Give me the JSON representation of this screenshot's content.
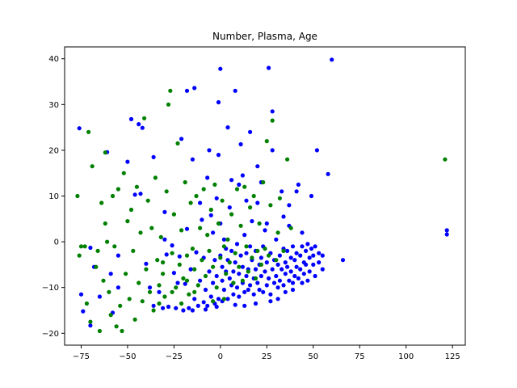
{
  "chart_data": {
    "type": "scatter",
    "title": "Number, Plasma, Age",
    "xlabel": "",
    "ylabel": "",
    "xlim": [
      -83.9,
      131.9
    ],
    "ylim": [
      -22.6,
      42.6
    ],
    "xticks": [
      -75,
      -50,
      -25,
      0,
      25,
      50,
      75,
      100,
      125
    ],
    "yticks": [
      -20,
      -10,
      0,
      10,
      20,
      30,
      40
    ],
    "grid": false,
    "legend": "none",
    "series": [
      {
        "color": "#0000ff",
        "points": [
          [
            -76,
            24.8
          ],
          [
            -75,
            -11.5
          ],
          [
            -74,
            -15.2
          ],
          [
            -70,
            -18.3
          ],
          [
            -70,
            -1.3
          ],
          [
            -68,
            -5.5
          ],
          [
            -65,
            -12.0
          ],
          [
            -61,
            19.6
          ],
          [
            -59,
            -7.0
          ],
          [
            -58,
            -15.5
          ],
          [
            -55,
            -3.0
          ],
          [
            -55,
            -10.0
          ],
          [
            -50,
            17.5
          ],
          [
            -48,
            26.8
          ],
          [
            -46,
            10.3
          ],
          [
            -44,
            25.7
          ],
          [
            -42,
            24.9
          ],
          [
            -40,
            -4.8
          ],
          [
            -38,
            -10.0
          ],
          [
            -36,
            -14.0
          ],
          [
            -33,
            -11.0
          ],
          [
            -31,
            -14.5
          ],
          [
            -30,
            0.5
          ],
          [
            -29,
            -2.8
          ],
          [
            -28,
            -14.2
          ],
          [
            -26,
            -0.8
          ],
          [
            -25,
            -6.8
          ],
          [
            -24,
            -14.5
          ],
          [
            -23,
            -9.0
          ],
          [
            -22,
            -3.2
          ],
          [
            -21,
            22.5
          ],
          [
            -20,
            -15.0
          ],
          [
            -19,
            -9.2
          ],
          [
            -18,
            2.8
          ],
          [
            -18,
            33.0
          ],
          [
            -17,
            -14.5
          ],
          [
            -16,
            -6.0
          ],
          [
            -15,
            18.0
          ],
          [
            -14,
            33.6
          ],
          [
            -14,
            -12.5
          ],
          [
            -13,
            -2.3
          ],
          [
            -12,
            -14.0
          ],
          [
            -11,
            -8.5
          ],
          [
            -10,
            4.8
          ],
          [
            -9,
            -13.2
          ],
          [
            -9,
            -3.5
          ],
          [
            -8,
            -10.5
          ],
          [
            -7,
            -14.0
          ],
          [
            -6,
            20.0
          ],
          [
            -6,
            -6.5
          ],
          [
            -5,
            5.8
          ],
          [
            -5,
            -12.0
          ],
          [
            -4,
            2.0
          ],
          [
            -4,
            -9.0
          ],
          [
            -3,
            -13.5
          ],
          [
            -3,
            -4.0
          ],
          [
            -2,
            -7.5
          ],
          [
            -2,
            9.5
          ],
          [
            -1,
            30.5
          ],
          [
            -1,
            -12.5
          ],
          [
            0,
            -3.0
          ],
          [
            0,
            37.8
          ],
          [
            0,
            4.0
          ],
          [
            1,
            -8.5
          ],
          [
            1,
            -5.5
          ],
          [
            1,
            -13.0
          ],
          [
            2,
            0.5
          ],
          [
            2,
            -10.5
          ],
          [
            3,
            -6.5
          ],
          [
            3,
            -1.5
          ],
          [
            4,
            -12.5
          ],
          [
            4,
            -4.0
          ],
          [
            5,
            -8.0
          ],
          [
            5,
            7.5
          ],
          [
            6,
            -9.5
          ],
          [
            6,
            -2.0
          ],
          [
            7,
            -11.5
          ],
          [
            7,
            -6.5
          ],
          [
            8,
            33.0
          ],
          [
            8,
            -4.5
          ],
          [
            9,
            -10.0
          ],
          [
            9,
            -0.5
          ],
          [
            10,
            -7.0
          ],
          [
            10,
            -12.0
          ],
          [
            11,
            -3.0
          ],
          [
            11,
            21.3
          ],
          [
            12,
            -9.0
          ],
          [
            12,
            -5.5
          ],
          [
            13,
            -11.0
          ],
          [
            13,
            1.5
          ],
          [
            14,
            -7.5
          ],
          [
            14,
            -2.5
          ],
          [
            15,
            -10.5
          ],
          [
            15,
            -6.0
          ],
          [
            16,
            -1.0
          ],
          [
            16,
            -9.5
          ],
          [
            17,
            -4.0
          ],
          [
            17,
            4.5
          ],
          [
            18,
            -8.0
          ],
          [
            18,
            -11.5
          ],
          [
            19,
            -6.0
          ],
          [
            19,
            -2.0
          ],
          [
            20,
            -9.0
          ],
          [
            20,
            8.5
          ],
          [
            21,
            -5.0
          ],
          [
            21,
            -10.5
          ],
          [
            22,
            -3.5
          ],
          [
            22,
            -7.5
          ],
          [
            23,
            -1.0
          ],
          [
            23,
            -11.0
          ],
          [
            24,
            -6.5
          ],
          [
            24,
            2.5
          ],
          [
            25,
            -9.5
          ],
          [
            25,
            -4.5
          ],
          [
            26,
            38.0
          ],
          [
            26,
            -8.0
          ],
          [
            27,
            -2.5
          ],
          [
            27,
            -11.5
          ],
          [
            28,
            -6.0
          ],
          [
            28,
            28.5
          ],
          [
            29,
            -9.0
          ],
          [
            29,
            -4.0
          ],
          [
            30,
            -7.5
          ],
          [
            30,
            0.5
          ],
          [
            31,
            -10.0
          ],
          [
            31,
            -5.0
          ],
          [
            32,
            -3.0
          ],
          [
            32,
            -8.5
          ],
          [
            33,
            -6.0
          ],
          [
            33,
            11.0
          ],
          [
            34,
            -1.5
          ],
          [
            34,
            -9.5
          ],
          [
            35,
            -4.5
          ],
          [
            35,
            -7.0
          ],
          [
            36,
            -2.0
          ],
          [
            36,
            -5.5
          ],
          [
            37,
            -8.5
          ],
          [
            37,
            3.5
          ],
          [
            38,
            -3.5
          ],
          [
            38,
            -6.5
          ],
          [
            39,
            -1.0
          ],
          [
            39,
            -9.0
          ],
          [
            40,
            -4.0
          ],
          [
            40,
            -7.5
          ],
          [
            41,
            -2.5
          ],
          [
            41,
            -5.5
          ],
          [
            42,
            -8.0
          ],
          [
            42,
            12.5
          ],
          [
            43,
            -3.0
          ],
          [
            43,
            -6.0
          ],
          [
            44,
            -1.0
          ],
          [
            44,
            -9.0
          ],
          [
            45,
            -4.5
          ],
          [
            45,
            -7.0
          ],
          [
            46,
            -2.0
          ],
          [
            46,
            -5.0
          ],
          [
            47,
            -8.5
          ],
          [
            47,
            -0.5
          ],
          [
            48,
            -3.5
          ],
          [
            48,
            -6.5
          ],
          [
            49,
            -1.5
          ],
          [
            49,
            10.0
          ],
          [
            50,
            -5.0
          ],
          [
            50,
            -3.0
          ],
          [
            51,
            -7.5
          ],
          [
            51,
            -1.0
          ],
          [
            52,
            20.0
          ],
          [
            53,
            -4.5
          ],
          [
            53,
            -2.5
          ],
          [
            55,
            -6.0
          ],
          [
            55,
            -3.0
          ],
          [
            58,
            14.8
          ],
          [
            60,
            39.8
          ],
          [
            66,
            -4.0
          ],
          [
            122,
            2.5
          ],
          [
            122,
            1.6
          ],
          [
            12,
            14.5
          ],
          [
            22,
            13.0
          ],
          [
            -36,
            18.5
          ],
          [
            -43,
            10.5
          ],
          [
            16,
            24.0
          ],
          [
            10,
            12.5
          ],
          [
            28,
            20.0
          ],
          [
            -7,
            14.0
          ],
          [
            4,
            25.0
          ],
          [
            34,
            5.5
          ],
          [
            41,
            11.0
          ],
          [
            -30,
            6.5
          ],
          [
            20,
            16.5
          ],
          [
            -1,
            19.0
          ],
          [
            6,
            13.5
          ],
          [
            37,
            8.0
          ],
          [
            25,
            4.0
          ],
          [
            14,
            9.0
          ],
          [
            44,
            2.0
          ],
          [
            -11,
            8.5
          ],
          [
            31,
            -12.5
          ],
          [
            27,
            -13.0
          ],
          [
            19,
            -13.5
          ],
          [
            13,
            -14.0
          ],
          [
            8,
            -13.8
          ],
          [
            -2,
            -14.2
          ],
          [
            -8,
            -14.8
          ],
          [
            -15,
            -15.0
          ],
          [
            35,
            -11.0
          ],
          [
            39,
            -10.5
          ]
        ]
      },
      {
        "color": "#008000",
        "points": [
          [
            -77,
            10.0
          ],
          [
            -76,
            -3.0
          ],
          [
            -75,
            -1.0
          ],
          [
            -73,
            -1.0
          ],
          [
            -72,
            -13.5
          ],
          [
            -71,
            24.0
          ],
          [
            -70,
            -17.5
          ],
          [
            -69,
            16.5
          ],
          [
            -67,
            -5.5
          ],
          [
            -66,
            -2.0
          ],
          [
            -65,
            -19.5
          ],
          [
            -64,
            8.5
          ],
          [
            -63,
            -8.5
          ],
          [
            -62,
            19.5
          ],
          [
            -62,
            4.0
          ],
          [
            -61,
            0.0
          ],
          [
            -60,
            -11.0
          ],
          [
            -59,
            -16.0
          ],
          [
            -58,
            10.0
          ],
          [
            -57,
            -1.0
          ],
          [
            -56,
            -18.5
          ],
          [
            -55,
            11.5
          ],
          [
            -54,
            -14.0
          ],
          [
            -53,
            -19.5
          ],
          [
            -52,
            15.0
          ],
          [
            -51,
            -7.0
          ],
          [
            -50,
            4.5
          ],
          [
            -49,
            -12.5
          ],
          [
            -48,
            7.0
          ],
          [
            -47,
            -2.0
          ],
          [
            -46,
            -17.0
          ],
          [
            -45,
            12.0
          ],
          [
            -44,
            -9.0
          ],
          [
            -43,
            2.0
          ],
          [
            -42,
            -13.0
          ],
          [
            -41,
            27.0
          ],
          [
            -40,
            -6.0
          ],
          [
            -39,
            9.0
          ],
          [
            -38,
            -11.0
          ],
          [
            -37,
            3.0
          ],
          [
            -36,
            -15.0
          ],
          [
            -35,
            14.0
          ],
          [
            -34,
            -4.0
          ],
          [
            -33,
            -9.5
          ],
          [
            -32,
            1.0
          ],
          [
            -31,
            -7.0
          ],
          [
            -30,
            -12.0
          ],
          [
            -29,
            11.0
          ],
          [
            -28,
            30.0
          ],
          [
            -27,
            33.0
          ],
          [
            -26,
            -2.5
          ],
          [
            -25,
            6.0
          ],
          [
            -24,
            -10.0
          ],
          [
            -23,
            21.5
          ],
          [
            -22,
            -5.0
          ],
          [
            -21,
            2.5
          ],
          [
            -20,
            -8.0
          ],
          [
            -19,
            13.0
          ],
          [
            -18,
            -3.0
          ],
          [
            -17,
            -11.5
          ],
          [
            -16,
            8.5
          ],
          [
            -15,
            -1.5
          ],
          [
            -14,
            -6.0
          ],
          [
            -13,
            10.0
          ],
          [
            -12,
            -9.5
          ],
          [
            -11,
            3.0
          ],
          [
            -10,
            -4.0
          ],
          [
            -9,
            11.5
          ],
          [
            -8,
            -7.5
          ],
          [
            -7,
            1.5
          ],
          [
            -6,
            -2.0
          ],
          [
            -5,
            7.0
          ],
          [
            -4,
            -5.5
          ],
          [
            -3,
            12.5
          ],
          [
            -2,
            -10.0
          ],
          [
            -1,
            4.0
          ],
          [
            0,
            -3.5
          ],
          [
            1,
            9.0
          ],
          [
            2,
            -1.0
          ],
          [
            3,
            -7.0
          ],
          [
            4,
            0.5
          ],
          [
            5,
            -4.5
          ],
          [
            6,
            6.0
          ],
          [
            7,
            -9.0
          ],
          [
            8,
            -2.5
          ],
          [
            9,
            11.5
          ],
          [
            10,
            -5.5
          ],
          [
            11,
            3.5
          ],
          [
            12,
            -8.5
          ],
          [
            13,
            12.0
          ],
          [
            14,
            -1.0
          ],
          [
            15,
            -6.5
          ],
          [
            16,
            7.5
          ],
          [
            17,
            -3.5
          ],
          [
            18,
            10.0
          ],
          [
            19,
            -8.0
          ],
          [
            20,
            -2.0
          ],
          [
            21,
            4.0
          ],
          [
            22,
            -5.0
          ],
          [
            23,
            13.0
          ],
          [
            24,
            -1.5
          ],
          [
            25,
            22.0
          ],
          [
            26,
            -3.0
          ],
          [
            27,
            8.0
          ],
          [
            28,
            26.5
          ],
          [
            30,
            -4.0
          ],
          [
            31,
            2.0
          ],
          [
            32,
            9.5
          ],
          [
            34,
            -2.0
          ],
          [
            36,
            18.0
          ],
          [
            38,
            3.0
          ],
          [
            121,
            18.0
          ],
          [
            -33,
            -13.5
          ],
          [
            -26,
            -11.0
          ],
          [
            -21,
            -13.5
          ],
          [
            -4,
            -13.0
          ],
          [
            -18,
            -8.5
          ],
          [
            2,
            -12.5
          ],
          [
            -31,
            -4.5
          ],
          [
            -14,
            -11.0
          ]
        ]
      }
    ]
  }
}
